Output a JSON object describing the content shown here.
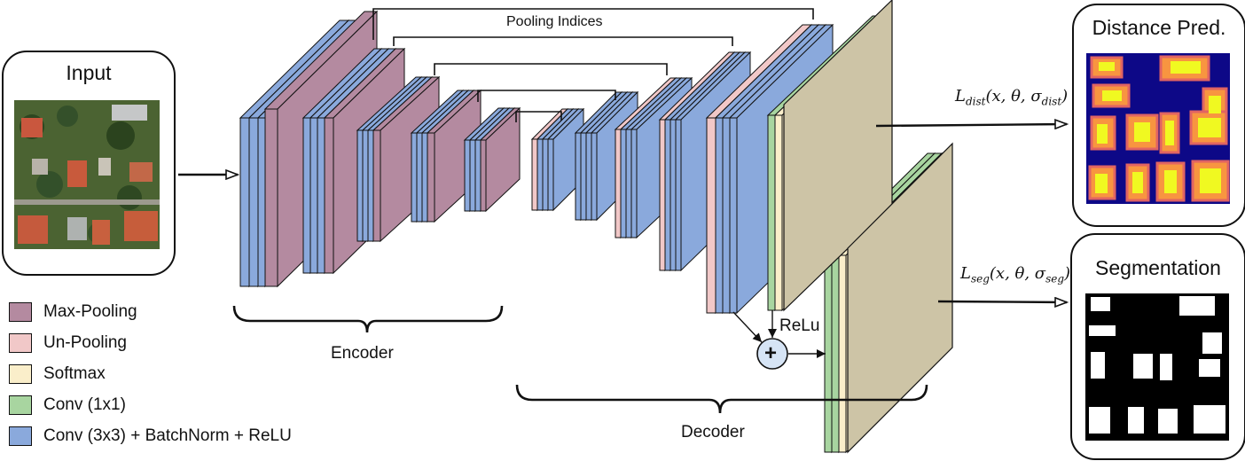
{
  "input_title": "Input",
  "output_dist_title": "Distance Pred.",
  "output_seg_title": "Segmentation",
  "pooling_label": "Pooling Indices",
  "encoder_label": "Encoder",
  "decoder_label": "Decoder",
  "relu_label": "ReLu",
  "plus_symbol": "+",
  "loss_dist": {
    "name": "L",
    "sub": "dist",
    "args": "(x, θ, σ",
    "sigma_sub": "dist",
    "close": ")"
  },
  "loss_seg": {
    "name": "L",
    "sub": "seg",
    "args": "(x, θ, σ",
    "sigma_sub": "seg",
    "close": ")"
  },
  "legend": [
    {
      "label": "Max-Pooling",
      "color": "#b48aa0"
    },
    {
      "label": "Un-Pooling",
      "color": "#f1c8c8"
    },
    {
      "label": "Softmax",
      "color": "#faeeca"
    },
    {
      "label": "Conv (1x1)",
      "color": "#a8d5a0"
    },
    {
      "label": "Conv (3x3) +  BatchNorm + ReLU",
      "color": "#8aa9dc"
    }
  ],
  "colors": {
    "conv3": "#8aa9dc",
    "maxpool": "#b48aa0",
    "unpool": "#f1c8c8",
    "softmax": "#faeeca",
    "conv1": "#a8d5a0",
    "output_map": "#cdc4a6",
    "plus_circle": "#d6e4f5"
  }
}
